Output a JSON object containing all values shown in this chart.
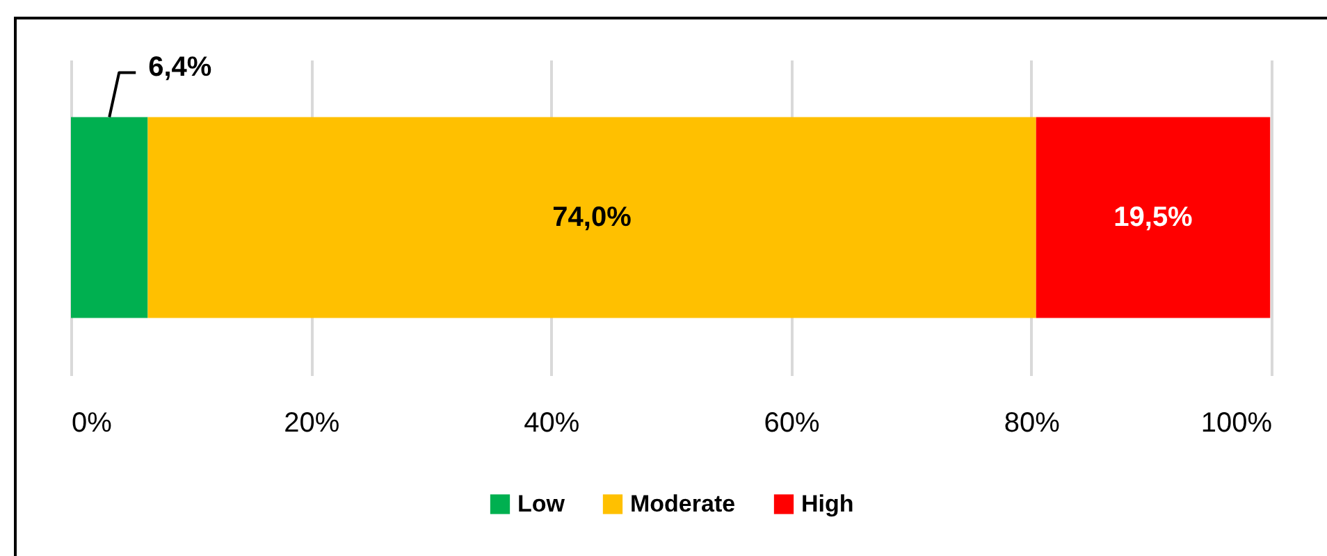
{
  "chart_data": {
    "type": "bar",
    "orientation": "horizontal",
    "stacked": true,
    "categories": [
      null
    ],
    "series": [
      {
        "name": "Low",
        "color": "#00b050",
        "values": [
          6.4
        ],
        "value_labels": [
          "6,4%"
        ]
      },
      {
        "name": "Moderate",
        "color": "#ffc000",
        "values": [
          74.0
        ],
        "value_labels": [
          "74,0%"
        ]
      },
      {
        "name": "High",
        "color": "#ff0000",
        "values": [
          19.5
        ],
        "value_labels": [
          "19,5%"
        ]
      }
    ],
    "xlim": [
      0,
      100
    ],
    "xticks": [
      {
        "value": 0,
        "label": "0%"
      },
      {
        "value": 20,
        "label": "20%"
      },
      {
        "value": 40,
        "label": "40%"
      },
      {
        "value": 60,
        "label": "60%"
      },
      {
        "value": 80,
        "label": "80%"
      },
      {
        "value": 100,
        "label": "100%"
      }
    ],
    "grid": "x",
    "legend": "bottom"
  }
}
